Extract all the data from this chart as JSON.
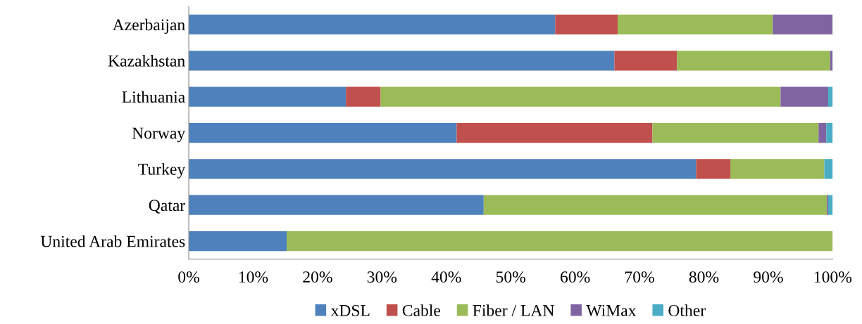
{
  "chart_data": {
    "type": "bar",
    "orientation": "horizontal",
    "stacked": true,
    "categories": [
      "Azerbaijan",
      "Kazakhstan",
      "Lithuania",
      "Norway",
      "Turkey",
      "Qatar",
      "United Arab Emirates"
    ],
    "series": [
      {
        "name": "xDSL",
        "color": "#4f81bd",
        "values": [
          56.9,
          66.1,
          24.4,
          41.6,
          78.8,
          45.8,
          15.2
        ]
      },
      {
        "name": "Cable",
        "color": "#c0504d",
        "values": [
          9.7,
          9.7,
          5.4,
          30.4,
          5.3,
          0,
          0
        ]
      },
      {
        "name": "Fiber / LAN",
        "color": "#9bbb59",
        "values": [
          24.1,
          23.8,
          62.1,
          25.8,
          14.6,
          53.3,
          84.8
        ]
      },
      {
        "name": "WiMax",
        "color": "#8064a2",
        "values": [
          9.3,
          0.4,
          7.4,
          1.2,
          0,
          0.2,
          0
        ]
      },
      {
        "name": "Other",
        "color": "#4bacc6",
        "values": [
          0,
          0,
          0.7,
          1.0,
          1.3,
          0.7,
          0
        ]
      }
    ],
    "xlim": [
      0,
      100
    ],
    "xticks": [
      {
        "value": 0,
        "label": "0%"
      },
      {
        "value": 10,
        "label": "10%"
      },
      {
        "value": 20,
        "label": "20%"
      },
      {
        "value": 30,
        "label": "30%"
      },
      {
        "value": 40,
        "label": "40%"
      },
      {
        "value": 50,
        "label": "50%"
      },
      {
        "value": 60,
        "label": "60%"
      },
      {
        "value": 70,
        "label": "70%"
      },
      {
        "value": 80,
        "label": "80%"
      },
      {
        "value": 90,
        "label": "90%"
      },
      {
        "value": 100,
        "label": "100%"
      }
    ],
    "legend": "bottom",
    "grid": false
  }
}
